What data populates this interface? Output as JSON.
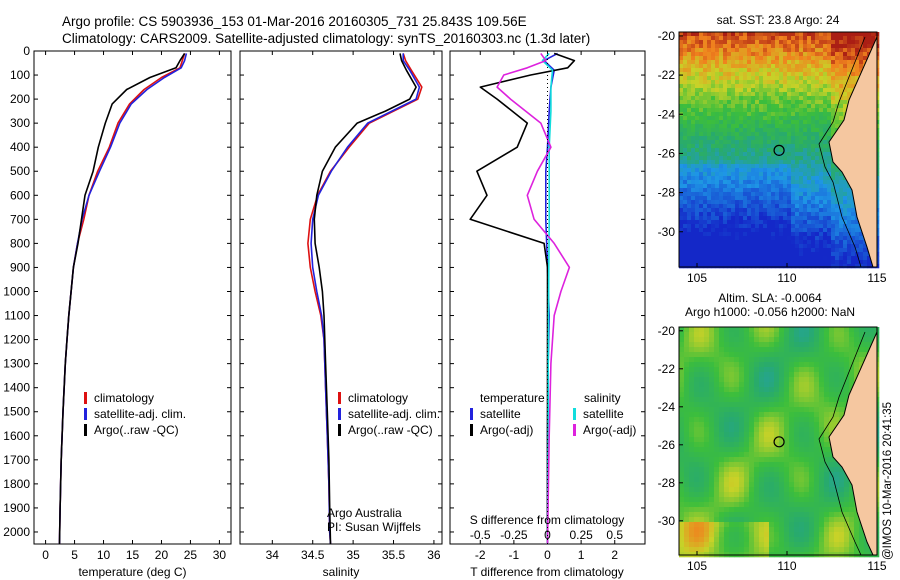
{
  "header": {
    "line1": "Argo profile: CS 5903936_153 01-Mar-2016 20160305_731 25.843S 109.56E",
    "line2": "Climatology: CARS2009. Satellite-adjusted climatology: synTS_20160303.nc (1.3d later)"
  },
  "credit": "@IMOS 10-Mar-2016 20:41:35",
  "colors": {
    "clim": "#dd1111",
    "sat": "#2222dd",
    "argo": "#000000",
    "sat_s": "#11dddd",
    "argo_s": "#dd22dd"
  },
  "chart_data": [
    {
      "type": "line",
      "id": "temperature",
      "xlabel": "temperature (deg C)",
      "ylabel": "",
      "xlim": [
        -2,
        32
      ],
      "ylim": [
        2050,
        0
      ],
      "xticks": [
        0,
        5,
        10,
        15,
        20,
        25,
        30
      ],
      "yticks": [
        0,
        100,
        200,
        300,
        400,
        500,
        600,
        700,
        800,
        900,
        1000,
        1100,
        1200,
        1300,
        1400,
        1500,
        1600,
        1700,
        1800,
        1900,
        2000
      ],
      "legend": [
        "climatology",
        "satellite-adj. clim.",
        "Argo(..raw -QC)"
      ],
      "series": [
        {
          "name": "climatology",
          "color": "#dd1111",
          "x": [
            24,
            23.6,
            23.2,
            20,
            17,
            14.5,
            12.5,
            11,
            9,
            7.5,
            6.6,
            5.5,
            4.8,
            4.4,
            4.0,
            3.7,
            3.4,
            3.0,
            2.7,
            2.5,
            2.4
          ],
          "y": [
            10,
            40,
            70,
            110,
            160,
            220,
            300,
            400,
            500,
            600,
            700,
            800,
            900,
            1000,
            1100,
            1200,
            1300,
            1500,
            1700,
            1900,
            2050
          ]
        },
        {
          "name": "satellite-adj. clim.",
          "color": "#2222dd",
          "x": [
            24.3,
            24,
            23.4,
            20.5,
            17.5,
            14.8,
            12.8,
            11.2,
            9.3,
            7.5,
            6.3,
            5.5,
            4.8,
            4.4,
            4.0,
            3.7,
            3.4,
            3.0,
            2.7,
            2.5,
            2.4
          ],
          "y": [
            10,
            40,
            70,
            110,
            160,
            220,
            300,
            400,
            500,
            600,
            700,
            800,
            900,
            1000,
            1100,
            1200,
            1300,
            1500,
            1700,
            1900,
            2050
          ]
        },
        {
          "name": "Argo(..raw -QC)",
          "color": "#000000",
          "x": [
            24,
            23.2,
            22.5,
            18,
            14,
            11.5,
            10.3,
            9.1,
            8.2,
            6.8,
            6.2,
            5.6,
            4.8,
            4.4,
            4.0,
            3.7,
            3.4,
            3.0,
            2.7,
            2.5,
            2.4
          ],
          "y": [
            10,
            40,
            70,
            110,
            160,
            220,
            300,
            400,
            500,
            600,
            700,
            800,
            900,
            1000,
            1100,
            1200,
            1300,
            1500,
            1700,
            1900,
            2050
          ]
        }
      ]
    },
    {
      "type": "line",
      "id": "salinity",
      "xlabel": "salinity",
      "ylabel": "",
      "xlim": [
        33.6,
        36.1
      ],
      "ylim": [
        2050,
        0
      ],
      "xticks": [
        34,
        34.5,
        35,
        35.5,
        36
      ],
      "legend": [
        "climatology",
        "satellite-adj. clim.",
        "Argo(..raw -QC)"
      ],
      "annotation": [
        "Argo Australia",
        "PI: Susan Wijffels"
      ],
      "series": [
        {
          "name": "climatology",
          "color": "#dd1111",
          "x": [
            35.62,
            35.65,
            35.72,
            35.85,
            35.8,
            35.5,
            35.2,
            34.95,
            34.72,
            34.56,
            34.47,
            34.44,
            34.47,
            34.53,
            34.6,
            34.64,
            34.66,
            34.68,
            34.7,
            34.71,
            34.72
          ],
          "y": [
            10,
            40,
            80,
            150,
            200,
            250,
            300,
            400,
            500,
            600,
            700,
            800,
            900,
            1000,
            1100,
            1200,
            1400,
            1600,
            1800,
            2000,
            2050
          ]
        },
        {
          "name": "satellite-adj. clim.",
          "color": "#2222dd",
          "x": [
            35.62,
            35.62,
            35.7,
            35.82,
            35.78,
            35.48,
            35.18,
            34.93,
            34.73,
            34.57,
            34.5,
            34.48,
            34.5,
            34.55,
            34.61,
            34.64,
            34.66,
            34.68,
            34.7,
            34.71,
            34.72
          ],
          "y": [
            10,
            40,
            80,
            150,
            200,
            250,
            300,
            400,
            500,
            600,
            700,
            800,
            900,
            1000,
            1100,
            1200,
            1400,
            1600,
            1800,
            2000,
            2050
          ]
        },
        {
          "name": "Argo(..raw -QC)",
          "color": "#000000",
          "x": [
            35.58,
            35.6,
            35.66,
            35.78,
            35.7,
            35.4,
            35.05,
            34.78,
            34.62,
            34.55,
            34.52,
            34.53,
            34.58,
            34.62,
            34.64,
            34.66,
            34.68,
            34.7,
            34.71,
            34.72
          ],
          "y": [
            10,
            40,
            80,
            150,
            200,
            250,
            300,
            400,
            500,
            600,
            700,
            800,
            900,
            1000,
            1100,
            1300,
            1500,
            1700,
            1900,
            2050
          ]
        }
      ]
    },
    {
      "type": "line",
      "id": "difference",
      "xlabel": "T difference from climatology",
      "xlabel2": "S difference from climatology",
      "xlim": [
        -2.9,
        2.9
      ],
      "ylim": [
        2050,
        0
      ],
      "xticks_T": [
        -2,
        -1,
        0,
        1,
        2
      ],
      "xticks_S": [
        -0.5,
        -0.25,
        0,
        0.25,
        0.5
      ],
      "legend_T": [
        "temperature",
        "satellite",
        "Argo(-adj)"
      ],
      "legend_S": [
        "salinity",
        "satellite",
        "Argo(-adj)"
      ],
      "series": [
        {
          "name": "satellite",
          "color": "#2222dd",
          "x": [
            0.3,
            -0.1,
            0.2,
            0.1,
            0.05,
            0.0,
            -0.05,
            -0.05,
            0.0,
            0.05,
            0.02,
            0.0,
            0.0,
            0.0
          ],
          "y": [
            10,
            40,
            80,
            150,
            250,
            400,
            500,
            700,
            900,
            1100,
            1300,
            1600,
            1900,
            2050
          ]
        },
        {
          "name": "Argo(-adj)",
          "color": "#000000",
          "x": [
            0.2,
            0.8,
            0.6,
            -0.5,
            -2.0,
            -1.5,
            -0.6,
            -0.9,
            -2.1,
            -1.8,
            -2.3,
            -0.1,
            0.0,
            0.0,
            0.0,
            0.0
          ],
          "y": [
            10,
            40,
            70,
            100,
            150,
            200,
            300,
            400,
            500,
            600,
            700,
            800,
            900,
            1100,
            1500,
            2050
          ]
        },
        {
          "name": "satellite",
          "color": "#11dddd",
          "x": [
            0.05,
            -0.15,
            0.15,
            0.1,
            0.1,
            0.05,
            0.05,
            0.05,
            0.04,
            0.03,
            0.02,
            0.02,
            0.01,
            0.0
          ],
          "y": [
            10,
            40,
            80,
            150,
            250,
            400,
            500,
            700,
            900,
            1100,
            1300,
            1600,
            1900,
            2050
          ]
        },
        {
          "name": "Argo(-adj)",
          "color": "#dd22dd",
          "x": [
            -0.2,
            -0.05,
            -0.6,
            -1.3,
            -1.5,
            -1.1,
            -0.2,
            0.1,
            -0.3,
            -0.6,
            -0.4,
            0.2,
            0.65,
            0.4,
            0.2,
            0.1,
            0.05,
            0.0
          ],
          "y": [
            10,
            40,
            70,
            100,
            150,
            200,
            300,
            400,
            500,
            600,
            700,
            800,
            900,
            1000,
            1100,
            1300,
            1600,
            2050
          ]
        }
      ]
    },
    {
      "type": "heatmap",
      "id": "sst-map",
      "title": "sat. SST: 23.8  Argo: 24",
      "xlim": [
        104,
        115
      ],
      "ylim": [
        -31.8,
        -19.8
      ],
      "xticks": [
        105,
        110,
        115
      ],
      "yticks": [
        -20,
        -22,
        -24,
        -26,
        -28,
        -30
      ],
      "marker": {
        "lon": 109.56,
        "lat": -25.843
      }
    },
    {
      "type": "heatmap",
      "id": "sla-map",
      "title": "Altim. SLA: -0.0064",
      "subtitle": "Argo h1000: -0.056  h2000: NaN",
      "xlim": [
        104,
        115
      ],
      "ylim": [
        -31.8,
        -19.8
      ],
      "xticks": [
        105,
        110,
        115
      ],
      "yticks": [
        -20,
        -22,
        -24,
        -26,
        -28,
        -30
      ],
      "marker": {
        "lon": 109.56,
        "lat": -25.843
      }
    }
  ]
}
